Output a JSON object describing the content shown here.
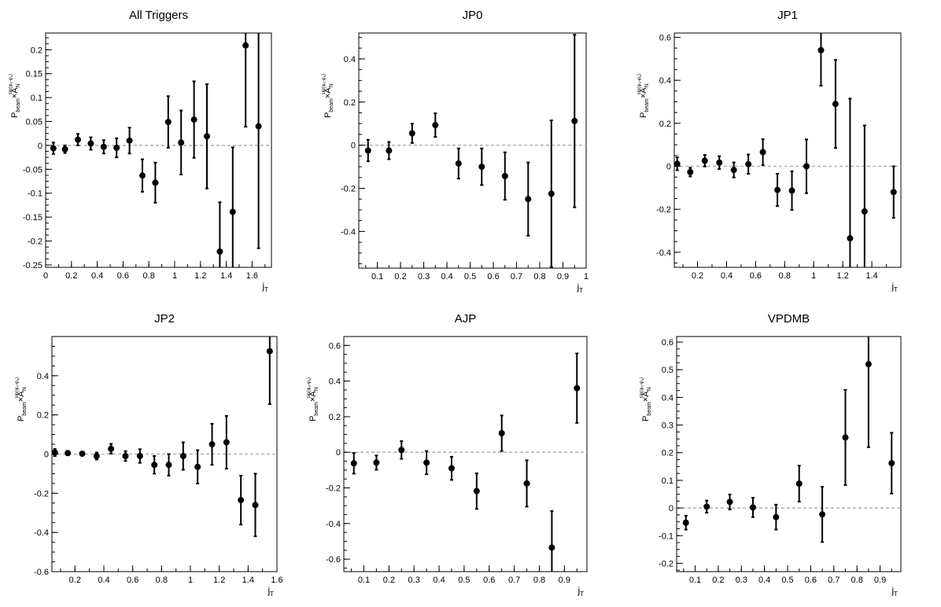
{
  "figure": {
    "ylabel_P": "P",
    "ylabel_beam": "beam",
    "ylabel_times": "×",
    "ylabel_A": "A",
    "ylabel_N": "N",
    "ylabel_sup": "sin(φ",
    "ylabel_sup_s": "S",
    "ylabel_sup_mid": "-φ",
    "ylabel_sup_h": "h",
    "ylabel_sup_end": ")"
  },
  "chart_data": [
    {
      "type": "scatter",
      "title": "All Triggers",
      "xlabel_main": "j",
      "xlabel_sub": "T",
      "xlim": [
        0,
        1.75
      ],
      "ylim": [
        -0.255,
        0.235
      ],
      "xticks": [
        0,
        0.2,
        0.4,
        0.6,
        0.8,
        1,
        1.2,
        1.4,
        1.6
      ],
      "xtick_labels": [
        "0",
        "0.2",
        "0.4",
        "0.6",
        "0.8",
        "1",
        "1.2",
        "1.4",
        "1.6"
      ],
      "yticks": [
        -0.25,
        -0.2,
        -0.15,
        -0.1,
        -0.05,
        0,
        0.05,
        0.1,
        0.15,
        0.2
      ],
      "ytick_labels": [
        "-0.25",
        "-0.2",
        "-0.15",
        "-0.1",
        "-0.05",
        "0",
        "0.05",
        "0.1",
        "0.15",
        "0.2"
      ],
      "points": [
        {
          "x": 0.06,
          "y": -0.006,
          "err": 0.012
        },
        {
          "x": 0.15,
          "y": -0.008,
          "err": 0.008
        },
        {
          "x": 0.25,
          "y": 0.012,
          "err": 0.012
        },
        {
          "x": 0.35,
          "y": 0.004,
          "err": 0.013
        },
        {
          "x": 0.45,
          "y": -0.003,
          "err": 0.014
        },
        {
          "x": 0.55,
          "y": -0.005,
          "err": 0.02
        },
        {
          "x": 0.65,
          "y": 0.01,
          "err": 0.027
        },
        {
          "x": 0.75,
          "y": -0.063,
          "err": 0.034
        },
        {
          "x": 0.85,
          "y": -0.078,
          "err": 0.042
        },
        {
          "x": 0.95,
          "y": 0.049,
          "err": 0.054
        },
        {
          "x": 1.05,
          "y": 0.006,
          "err": 0.067
        },
        {
          "x": 1.15,
          "y": 0.054,
          "err": 0.08
        },
        {
          "x": 1.25,
          "y": 0.019,
          "err": 0.109
        },
        {
          "x": 1.35,
          "y": -0.222,
          "err": 0.103
        },
        {
          "x": 1.45,
          "y": -0.139,
          "err": 0.135
        },
        {
          "x": 1.55,
          "y": 0.209,
          "err": 0.17
        },
        {
          "x": 1.65,
          "y": 0.04,
          "err": 0.255
        }
      ]
    },
    {
      "type": "scatter",
      "title": "JP0",
      "xlabel_main": "j",
      "xlabel_sub": "T",
      "xlim": [
        0.02,
        1.0
      ],
      "ylim": [
        -0.57,
        0.52
      ],
      "xticks": [
        0.1,
        0.2,
        0.3,
        0.4,
        0.5,
        0.6,
        0.7,
        0.8,
        0.9,
        1
      ],
      "xtick_labels": [
        "0.1",
        "0.2",
        "0.3",
        "0.4",
        "0.5",
        "0.6",
        "0.7",
        "0.8",
        "0.9",
        "1"
      ],
      "yticks": [
        -0.4,
        -0.2,
        0,
        0.2,
        0.4
      ],
      "ytick_labels": [
        "-0.4",
        "-0.2",
        "0",
        "0.2",
        "0.4"
      ],
      "points": [
        {
          "x": 0.06,
          "y": -0.025,
          "err": 0.05
        },
        {
          "x": 0.15,
          "y": -0.025,
          "err": 0.04
        },
        {
          "x": 0.25,
          "y": 0.055,
          "err": 0.045
        },
        {
          "x": 0.35,
          "y": 0.093,
          "err": 0.055
        },
        {
          "x": 0.45,
          "y": -0.085,
          "err": 0.07
        },
        {
          "x": 0.55,
          "y": -0.1,
          "err": 0.085
        },
        {
          "x": 0.65,
          "y": -0.143,
          "err": 0.11
        },
        {
          "x": 0.75,
          "y": -0.25,
          "err": 0.17
        },
        {
          "x": 0.85,
          "y": -0.225,
          "err": 0.34
        },
        {
          "x": 0.95,
          "y": 0.112,
          "err": 0.4
        }
      ]
    },
    {
      "type": "scatter",
      "title": "JP1",
      "xlabel_main": "j",
      "xlabel_sub": "T",
      "xlim": [
        0.04,
        1.6
      ],
      "ylim": [
        -0.47,
        0.62
      ],
      "xticks": [
        0.2,
        0.4,
        0.6,
        0.8,
        1,
        1.2,
        1.4
      ],
      "xtick_labels": [
        "0.2",
        "0.4",
        "0.6",
        "0.8",
        "1",
        "1.2",
        "1.4"
      ],
      "yticks": [
        -0.4,
        -0.2,
        0,
        0.2,
        0.4,
        0.6
      ],
      "ytick_labels": [
        "-0.4",
        "-0.2",
        "0",
        "0.2",
        "0.4",
        "0.6"
      ],
      "points": [
        {
          "x": 0.06,
          "y": 0.012,
          "err": 0.03
        },
        {
          "x": 0.15,
          "y": -0.027,
          "err": 0.02
        },
        {
          "x": 0.25,
          "y": 0.026,
          "err": 0.027
        },
        {
          "x": 0.35,
          "y": 0.017,
          "err": 0.03
        },
        {
          "x": 0.45,
          "y": -0.017,
          "err": 0.035
        },
        {
          "x": 0.55,
          "y": 0.01,
          "err": 0.045
        },
        {
          "x": 0.65,
          "y": 0.066,
          "err": 0.06
        },
        {
          "x": 0.75,
          "y": -0.11,
          "err": 0.075
        },
        {
          "x": 0.85,
          "y": -0.113,
          "err": 0.09
        },
        {
          "x": 0.95,
          "y": 0.0,
          "err": 0.125
        },
        {
          "x": 1.05,
          "y": 0.54,
          "err": 0.165
        },
        {
          "x": 1.15,
          "y": 0.29,
          "err": 0.205
        },
        {
          "x": 1.25,
          "y": -0.335,
          "err": 0.65
        },
        {
          "x": 1.35,
          "y": -0.21,
          "err": 0.4
        },
        {
          "x": 1.55,
          "y": -0.12,
          "err": 0.12
        }
      ]
    },
    {
      "type": "scatter",
      "title": "JP2",
      "xlabel_main": "j",
      "xlabel_sub": "T",
      "xlim": [
        0.04,
        1.6
      ],
      "ylim": [
        -0.6,
        0.6
      ],
      "xticks": [
        0.2,
        0.4,
        0.6,
        0.8,
        1,
        1.2,
        1.4,
        1.6
      ],
      "xtick_labels": [
        "0.2",
        "0.4",
        "0.6",
        "0.8",
        "1",
        "1.2",
        "1.4",
        "1.6"
      ],
      "yticks": [
        -0.6,
        -0.4,
        -0.2,
        0,
        0.2,
        0.4
      ],
      "ytick_labels": [
        "-0.6",
        "-0.4",
        "-0.2",
        "0",
        "0.2",
        "0.4"
      ],
      "points": [
        {
          "x": 0.06,
          "y": 0.008,
          "err": 0.018
        },
        {
          "x": 0.15,
          "y": 0.005,
          "err": 0.01
        },
        {
          "x": 0.25,
          "y": 0.002,
          "err": 0.01
        },
        {
          "x": 0.35,
          "y": -0.01,
          "err": 0.018
        },
        {
          "x": 0.45,
          "y": 0.027,
          "err": 0.025
        },
        {
          "x": 0.55,
          "y": -0.01,
          "err": 0.025
        },
        {
          "x": 0.65,
          "y": -0.01,
          "err": 0.035
        },
        {
          "x": 0.75,
          "y": -0.055,
          "err": 0.045
        },
        {
          "x": 0.85,
          "y": -0.055,
          "err": 0.055
        },
        {
          "x": 0.95,
          "y": -0.01,
          "err": 0.07
        },
        {
          "x": 1.05,
          "y": -0.065,
          "err": 0.085
        },
        {
          "x": 1.15,
          "y": 0.05,
          "err": 0.105
        },
        {
          "x": 1.25,
          "y": 0.06,
          "err": 0.135
        },
        {
          "x": 1.35,
          "y": -0.235,
          "err": 0.125
        },
        {
          "x": 1.45,
          "y": -0.26,
          "err": 0.16
        },
        {
          "x": 1.55,
          "y": 0.525,
          "err": 0.27
        }
      ]
    },
    {
      "type": "scatter",
      "title": "AJP",
      "xlabel_main": "j",
      "xlabel_sub": "T",
      "xlim": [
        0.02,
        0.99
      ],
      "ylim": [
        -0.67,
        0.65
      ],
      "xticks": [
        0.1,
        0.2,
        0.3,
        0.4,
        0.5,
        0.6,
        0.7,
        0.8,
        0.9
      ],
      "xtick_labels": [
        "0.1",
        "0.2",
        "0.3",
        "0.4",
        "0.5",
        "0.6",
        "0.7",
        "0.8",
        "0.9"
      ],
      "yticks": [
        -0.6,
        -0.4,
        -0.2,
        0,
        0.2,
        0.4,
        0.6
      ],
      "ytick_labels": [
        "-0.6",
        "-0.4",
        "-0.2",
        "0",
        "0.2",
        "0.4",
        "0.6"
      ],
      "points": [
        {
          "x": 0.06,
          "y": -0.062,
          "err": 0.058
        },
        {
          "x": 0.15,
          "y": -0.058,
          "err": 0.04
        },
        {
          "x": 0.25,
          "y": 0.013,
          "err": 0.05
        },
        {
          "x": 0.35,
          "y": -0.058,
          "err": 0.065
        },
        {
          "x": 0.45,
          "y": -0.09,
          "err": 0.065
        },
        {
          "x": 0.55,
          "y": -0.218,
          "err": 0.1
        },
        {
          "x": 0.65,
          "y": 0.107,
          "err": 0.1
        },
        {
          "x": 0.75,
          "y": -0.175,
          "err": 0.13
        },
        {
          "x": 0.85,
          "y": -0.535,
          "err": 0.205
        },
        {
          "x": 0.95,
          "y": 0.36,
          "err": 0.195
        }
      ]
    },
    {
      "type": "scatter",
      "title": "VPDMB",
      "xlabel_main": "j",
      "xlabel_sub": "T",
      "xlim": [
        0.02,
        0.99
      ],
      "ylim": [
        -0.23,
        0.62
      ],
      "xticks": [
        0.1,
        0.2,
        0.3,
        0.4,
        0.5,
        0.6,
        0.7,
        0.8,
        0.9
      ],
      "xtick_labels": [
        "0.1",
        "0.2",
        "0.3",
        "0.4",
        "0.5",
        "0.6",
        "0.7",
        "0.8",
        "0.9"
      ],
      "yticks": [
        -0.2,
        -0.1,
        0,
        0.1,
        0.2,
        0.3,
        0.4,
        0.5,
        0.6
      ],
      "ytick_labels": [
        "-0.2",
        "-0.1",
        "0",
        "0.1",
        "0.2",
        "0.3",
        "0.4",
        "0.5",
        "0.6"
      ],
      "points": [
        {
          "x": 0.06,
          "y": -0.053,
          "err": 0.025
        },
        {
          "x": 0.15,
          "y": 0.005,
          "err": 0.022
        },
        {
          "x": 0.25,
          "y": 0.022,
          "err": 0.027
        },
        {
          "x": 0.35,
          "y": 0.002,
          "err": 0.035
        },
        {
          "x": 0.45,
          "y": -0.033,
          "err": 0.045
        },
        {
          "x": 0.55,
          "y": 0.088,
          "err": 0.065
        },
        {
          "x": 0.65,
          "y": -0.023,
          "err": 0.1
        },
        {
          "x": 0.75,
          "y": 0.255,
          "err": 0.172
        },
        {
          "x": 0.85,
          "y": 0.52,
          "err": 0.3
        },
        {
          "x": 0.95,
          "y": 0.162,
          "err": 0.11
        }
      ]
    }
  ]
}
